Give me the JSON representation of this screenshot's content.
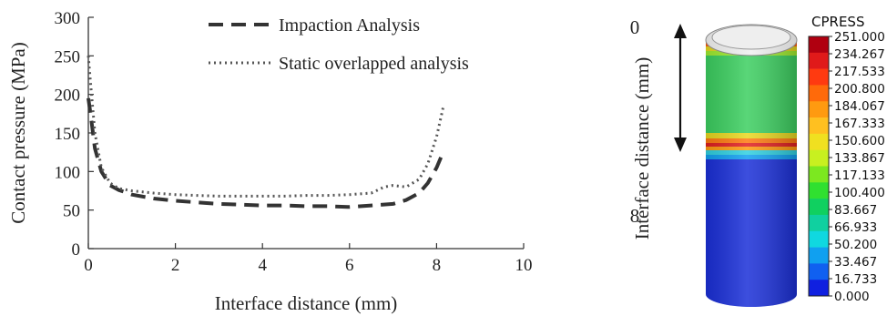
{
  "chart_data": [
    {
      "type": "line",
      "xlabel": "Interface distance (mm)",
      "ylabel": "Contact pressure (MPa)",
      "xlim": [
        0,
        10
      ],
      "ylim": [
        0,
        300
      ],
      "xticks": [
        "0",
        "2",
        "4",
        "6",
        "8",
        "10"
      ],
      "yticks": [
        "0",
        "50",
        "100",
        "150",
        "200",
        "250",
        "300"
      ],
      "grid": false,
      "legend_position": "top-right",
      "series": [
        {
          "name": "Impaction Analysis",
          "style": "dashed",
          "color": "#333333",
          "x": [
            0.0,
            0.05,
            0.15,
            0.3,
            0.5,
            0.7,
            1.0,
            1.5,
            2.0,
            2.5,
            3.0,
            3.5,
            4.0,
            4.5,
            5.0,
            5.5,
            6.0,
            6.5,
            7.0,
            7.3,
            7.6,
            7.8,
            8.0,
            8.15
          ],
          "y": [
            195,
            175,
            130,
            100,
            82,
            76,
            70,
            65,
            62,
            60,
            58,
            57,
            56,
            56,
            55,
            55,
            54,
            56,
            58,
            63,
            72,
            85,
            105,
            125
          ]
        },
        {
          "name": "Static overlapped analysis",
          "style": "dotted",
          "color": "#555555",
          "x": [
            0.0,
            0.05,
            0.15,
            0.3,
            0.5,
            0.7,
            1.0,
            1.5,
            2.0,
            2.5,
            3.0,
            3.5,
            4.0,
            4.5,
            5.0,
            5.5,
            6.0,
            6.5,
            6.8,
            7.0,
            7.3,
            7.6,
            7.8,
            8.0,
            8.15
          ],
          "y": [
            250,
            215,
            150,
            105,
            85,
            78,
            75,
            72,
            70,
            69,
            68,
            68,
            68,
            68,
            69,
            69,
            70,
            72,
            80,
            82,
            80,
            90,
            110,
            145,
            183
          ]
        }
      ]
    },
    {
      "type": "heatmap",
      "title": "CPRESS",
      "axis_label": "Interface distance (mm)",
      "axis_ticks": [
        "0",
        "8"
      ],
      "colorbar": {
        "levels": [
          "251.000",
          "234.267",
          "217.533",
          "200.800",
          "184.067",
          "167.333",
          "150.600",
          "133.867",
          "117.133",
          "100.400",
          "83.667",
          "66.933",
          "50.200",
          "33.467",
          "16.733",
          "0.000"
        ],
        "colors": [
          "#b00010",
          "#e01a1a",
          "#ff3a10",
          "#ff6a0a",
          "#ff9a10",
          "#ffc020",
          "#f0e020",
          "#c8f020",
          "#7ce820",
          "#30e030",
          "#10d060",
          "#10d0a0",
          "#10d8e0",
          "#10a0f0",
          "#1060f0",
          "#1020e0"
        ]
      },
      "regions": [
        {
          "part": "top",
          "value": 0,
          "color": "#e6e6e6"
        },
        {
          "part": "upper-band",
          "value": 90,
          "color": "#3fd060"
        },
        {
          "part": "lower-band",
          "value": 8,
          "color": "#1028d8"
        }
      ]
    }
  ]
}
